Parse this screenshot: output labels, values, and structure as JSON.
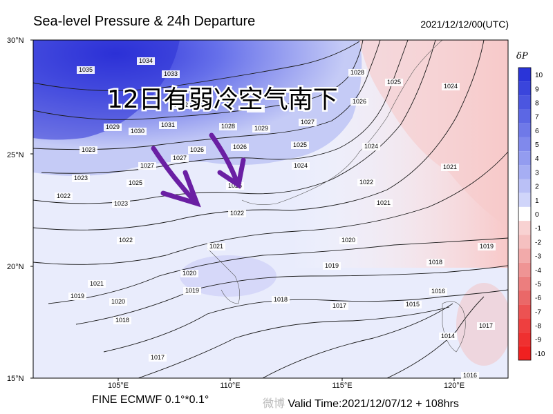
{
  "title": "Sea-level Pressure & 24h Departure",
  "datetime": "2021/12/12/00(UTC)",
  "overlay_text": "12日有弱冷空气南下",
  "footer": {
    "model": "FINE ECMWF 0.1°*0.1°",
    "watermark": "微博",
    "valid_label": "Valid Time:",
    "valid_value": "2021/12/07/12 + 108hrs"
  },
  "colors": {
    "positive_strong": "#2a34d8",
    "positive_light": "#c9ccf6",
    "negative_light": "#f8d2d2",
    "negative_strong": "#ee2a2a",
    "arrow": "#6a1fa3"
  },
  "map": {
    "lat_labels": [
      "30°N",
      "25°N",
      "20°N",
      "15°N"
    ],
    "lon_labels": [
      "105°E",
      "110°E",
      "115°E",
      "120°E"
    ],
    "isobar_labels": [
      "1035",
      "1034",
      "1033",
      "1032",
      "1031",
      "1030",
      "1029",
      "1029",
      "1028",
      "1028",
      "1027",
      "1027",
      "1026",
      "1026",
      "1026",
      "1025",
      "1025",
      "1025",
      "1025",
      "1024",
      "1024",
      "1024",
      "1023",
      "1023",
      "1023",
      "1022",
      "1022",
      "1022",
      "1022",
      "1021",
      "1021",
      "1021",
      "1020",
      "1020",
      "1020",
      "1019",
      "1019",
      "1019",
      "1019",
      "1018",
      "1018",
      "1018",
      "1017",
      "1017",
      "1017",
      "1016",
      "1016",
      "1015",
      "1014",
      "1021",
      "1027",
      "1026"
    ]
  },
  "colorbar": {
    "label": "δP",
    "values": [
      "10",
      "9",
      "8",
      "7",
      "6",
      "5",
      "4",
      "3",
      "2",
      "1",
      "0",
      "-1",
      "-2",
      "-3",
      "-4",
      "-5",
      "-6",
      "-7",
      "-8",
      "-9",
      "-10"
    ]
  }
}
